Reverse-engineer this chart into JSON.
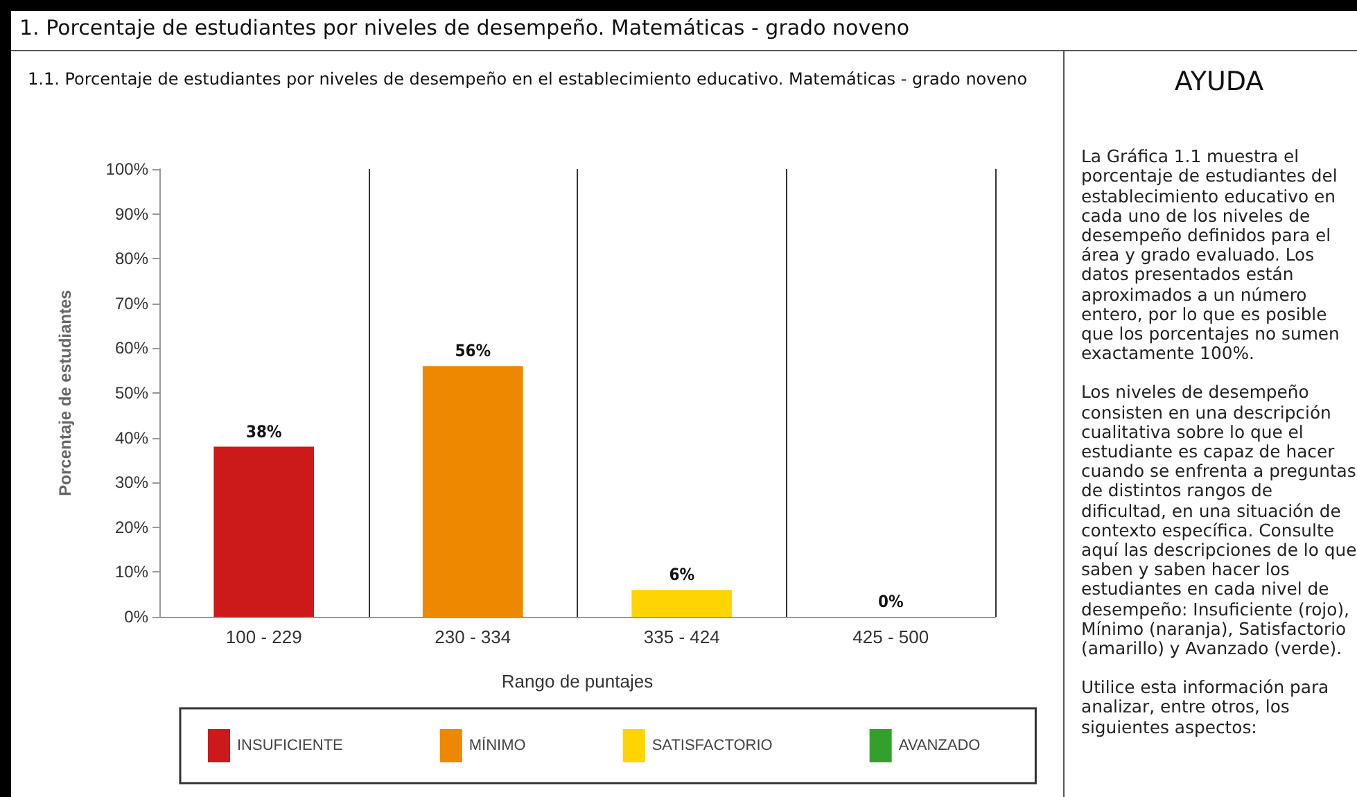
{
  "chart_data": {
    "type": "bar",
    "title": "1. Porcentaje de estudiantes por niveles de desempeño. Matemáticas - grado noveno",
    "subtitle": "1.1. Porcentaje de estudiantes por niveles de desempeño en el establecimiento educativo. Matemáticas - grado noveno",
    "xlabel": "Rango de puntajes",
    "ylabel": "Porcentaje de estudiantes",
    "categories": [
      "100 - 229",
      "230 - 334",
      "335 - 424",
      "425 - 500"
    ],
    "series": [
      {
        "name": "INSUFICIENTE",
        "color": "#cc1a1a",
        "values": [
          38,
          null,
          null,
          null
        ],
        "value_labels": [
          "38%",
          null,
          null,
          null
        ]
      },
      {
        "name": "MÍNIMO",
        "color": "#ee8800",
        "values": [
          null,
          56,
          null,
          null
        ],
        "value_labels": [
          null,
          "56%",
          null,
          null
        ]
      },
      {
        "name": "SATISFACTORIO",
        "color": "#ffd400",
        "values": [
          null,
          null,
          6,
          null
        ],
        "value_labels": [
          null,
          null,
          "6%",
          null
        ]
      },
      {
        "name": "AVANZADO",
        "color": "#33a02c",
        "values": [
          null,
          null,
          null,
          0
        ],
        "value_labels": [
          null,
          null,
          null,
          "0%"
        ]
      }
    ],
    "ylim": [
      0,
      100
    ],
    "yticks": [
      {
        "value": 0,
        "label": "0%"
      },
      {
        "value": 10,
        "label": "10%"
      },
      {
        "value": 20,
        "label": "20%"
      },
      {
        "value": 30,
        "label": "30%"
      },
      {
        "value": 40,
        "label": "40%"
      },
      {
        "value": 50,
        "label": "50%"
      },
      {
        "value": 60,
        "label": "60%"
      },
      {
        "value": 70,
        "label": "70%"
      },
      {
        "value": 80,
        "label": "80%"
      },
      {
        "value": 90,
        "label": "90%"
      },
      {
        "value": 100,
        "label": "100%"
      }
    ],
    "grid": "x",
    "legend": "bottom",
    "annotations": [
      "AYUDA",
      "La Gráfica 1.1 muestra el porcentaje de estudiantes del establecimiento educativo en cada uno de los niveles de desempeño definidos para el área y grado evaluado. Los datos presentados están aproximados a un número entero, por lo que es posible que los porcentajes no sumen exactamente 100%.",
      "Los niveles de desempeño consisten en una descripción cualitativa sobre lo que el estudiante es capaz de hacer cuando se enfrenta a preguntas de distintos rangos de dificultad, en una situación de contexto específica. Consulte aquí las descripciones de lo que saben y saben hacer los estudiantes en cada nivel de desempeño: Insuficiente (rojo), Mínimo (naranja), Satisfactorio (amarillo) y Avanzado (verde).",
      "Utilice esta información para analizar, entre otros, los siguientes aspectos:"
    ]
  }
}
